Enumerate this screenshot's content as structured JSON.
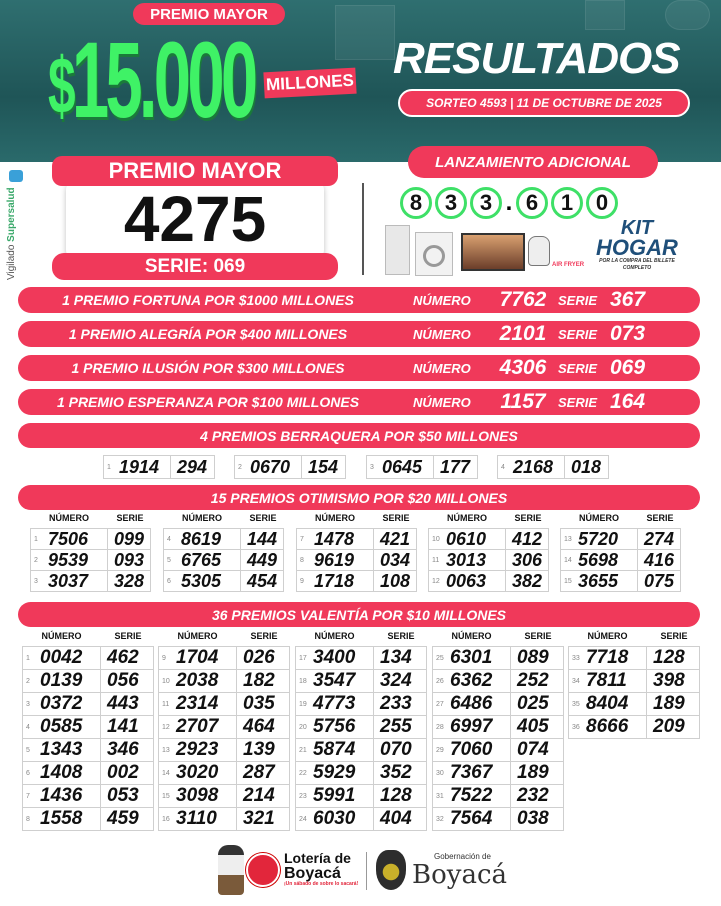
{
  "header": {
    "premio_mayor_tag": "PREMIO MAYOR",
    "amount_symbol": "$",
    "amount": "15.000",
    "amount_unit": "MILLONES",
    "title": "RESULTADOS",
    "sorteo": "SORTEO 4593 | 11 DE OCTUBRE DE 2025"
  },
  "colors": {
    "accent": "#f0395a",
    "green": "#3ff266",
    "teal": "#2a6a6b"
  },
  "premio_mayor": {
    "label": "PREMIO MAYOR",
    "numero": "4275",
    "serie": "SERIE: 069"
  },
  "vigilado": {
    "prefix": "Vigilado ",
    "brand": "Supersalud"
  },
  "lanzamiento": {
    "label": "LANZAMIENTO ADICIONAL",
    "digits": [
      "8",
      "3",
      "3",
      ".",
      "6",
      "1",
      "0"
    ],
    "kit_title_1": "KIT",
    "kit_title_2": "HOGAR",
    "kit_sub": "POR LA COMPRA DEL BILLETE COMPLETO",
    "airfryer_tag": "AIR FRYER"
  },
  "secos_mayores": [
    {
      "label": "1 PREMIO FORTUNA POR $1000 MILLONES",
      "numero_label": "NÚMERO",
      "numero": "7762",
      "serie_label": "SERIE",
      "serie": "367"
    },
    {
      "label": "1 PREMIO ALEGRÍA POR $400 MILLONES",
      "numero_label": "NÚMERO",
      "numero": "2101",
      "serie_label": "SERIE",
      "serie": "073"
    },
    {
      "label": "1 PREMIO ILUSIÓN POR $300 MILLONES",
      "numero_label": "NÚMERO",
      "numero": "4306",
      "serie_label": "SERIE",
      "serie": "069"
    },
    {
      "label": "1 PREMIO ESPERANZA POR $100 MILLONES",
      "numero_label": "NÚMERO",
      "numero": "1157",
      "serie_label": "SERIE",
      "serie": "164"
    }
  ],
  "berraquera": {
    "title": "4 PREMIOS BERRAQUERA POR $50 MILLONES",
    "items": [
      {
        "n": "1",
        "numero": "1914",
        "serie": "294"
      },
      {
        "n": "2",
        "numero": "0670",
        "serie": "154"
      },
      {
        "n": "3",
        "numero": "0645",
        "serie": "177"
      },
      {
        "n": "4",
        "numero": "2168",
        "serie": "018"
      }
    ]
  },
  "table_headers": {
    "numero": "NÚMERO",
    "serie": "SERIE"
  },
  "otimismo": {
    "title": "15 PREMIOS OTIMISMO POR $20 MILLONES",
    "items": [
      {
        "n": "1",
        "numero": "7506",
        "serie": "099"
      },
      {
        "n": "2",
        "numero": "9539",
        "serie": "093"
      },
      {
        "n": "3",
        "numero": "3037",
        "serie": "328"
      },
      {
        "n": "4",
        "numero": "8619",
        "serie": "144"
      },
      {
        "n": "5",
        "numero": "6765",
        "serie": "449"
      },
      {
        "n": "6",
        "numero": "5305",
        "serie": "454"
      },
      {
        "n": "7",
        "numero": "1478",
        "serie": "421"
      },
      {
        "n": "8",
        "numero": "9619",
        "serie": "034"
      },
      {
        "n": "9",
        "numero": "1718",
        "serie": "108"
      },
      {
        "n": "10",
        "numero": "0610",
        "serie": "412"
      },
      {
        "n": "11",
        "numero": "3013",
        "serie": "306"
      },
      {
        "n": "12",
        "numero": "0063",
        "serie": "382"
      },
      {
        "n": "13",
        "numero": "5720",
        "serie": "274"
      },
      {
        "n": "14",
        "numero": "5698",
        "serie": "416"
      },
      {
        "n": "15",
        "numero": "3655",
        "serie": "075"
      }
    ]
  },
  "valentia": {
    "title": "36 PREMIOS VALENTÍA POR $10 MILLONES",
    "items": [
      {
        "n": "1",
        "numero": "0042",
        "serie": "462"
      },
      {
        "n": "2",
        "numero": "0139",
        "serie": "056"
      },
      {
        "n": "3",
        "numero": "0372",
        "serie": "443"
      },
      {
        "n": "4",
        "numero": "0585",
        "serie": "141"
      },
      {
        "n": "5",
        "numero": "1343",
        "serie": "346"
      },
      {
        "n": "6",
        "numero": "1408",
        "serie": "002"
      },
      {
        "n": "7",
        "numero": "1436",
        "serie": "053"
      },
      {
        "n": "8",
        "numero": "1558",
        "serie": "459"
      },
      {
        "n": "9",
        "numero": "1704",
        "serie": "026"
      },
      {
        "n": "10",
        "numero": "2038",
        "serie": "182"
      },
      {
        "n": "11",
        "numero": "2314",
        "serie": "035"
      },
      {
        "n": "12",
        "numero": "2707",
        "serie": "464"
      },
      {
        "n": "13",
        "numero": "2923",
        "serie": "139"
      },
      {
        "n": "14",
        "numero": "3020",
        "serie": "287"
      },
      {
        "n": "15",
        "numero": "3098",
        "serie": "214"
      },
      {
        "n": "16",
        "numero": "3110",
        "serie": "321"
      },
      {
        "n": "17",
        "numero": "3400",
        "serie": "134"
      },
      {
        "n": "18",
        "numero": "3547",
        "serie": "324"
      },
      {
        "n": "19",
        "numero": "4773",
        "serie": "233"
      },
      {
        "n": "20",
        "numero": "5756",
        "serie": "255"
      },
      {
        "n": "21",
        "numero": "5874",
        "serie": "070"
      },
      {
        "n": "22",
        "numero": "5929",
        "serie": "352"
      },
      {
        "n": "23",
        "numero": "5991",
        "serie": "128"
      },
      {
        "n": "24",
        "numero": "6030",
        "serie": "404"
      },
      {
        "n": "25",
        "numero": "6301",
        "serie": "089"
      },
      {
        "n": "26",
        "numero": "6362",
        "serie": "252"
      },
      {
        "n": "27",
        "numero": "6486",
        "serie": "025"
      },
      {
        "n": "28",
        "numero": "6997",
        "serie": "405"
      },
      {
        "n": "29",
        "numero": "7060",
        "serie": "074"
      },
      {
        "n": "30",
        "numero": "7367",
        "serie": "189"
      },
      {
        "n": "31",
        "numero": "7522",
        "serie": "232"
      },
      {
        "n": "32",
        "numero": "7564",
        "serie": "038"
      },
      {
        "n": "33",
        "numero": "7718",
        "serie": "128"
      },
      {
        "n": "34",
        "numero": "7811",
        "serie": "398"
      },
      {
        "n": "35",
        "numero": "8404",
        "serie": "189"
      },
      {
        "n": "36",
        "numero": "8666",
        "serie": "209"
      }
    ]
  },
  "footer": {
    "loteria_1": "Lotería de",
    "loteria_2": "Boyacá",
    "loteria_slogan": "¡Un sábado de sobre lo sacará!",
    "gob_1": "Gobernación de",
    "gob_2": "Boyacá"
  }
}
